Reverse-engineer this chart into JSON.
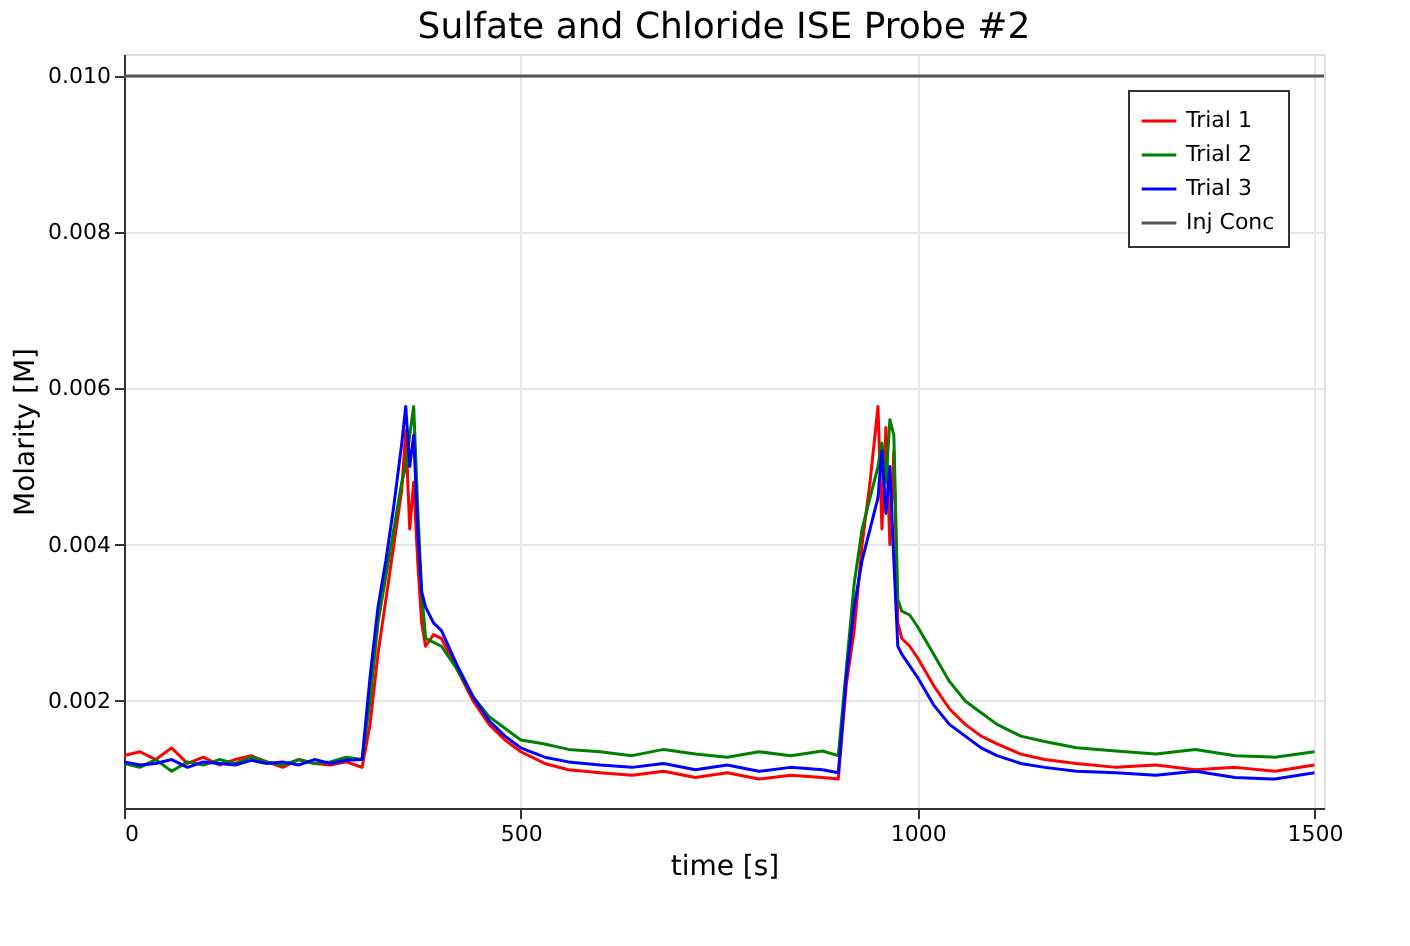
{
  "chart_data": {
    "type": "line",
    "title": "Sulfate and Chloride ISE Probe #2",
    "xlabel": "time [s]",
    "ylabel": "Molarity [M]",
    "x": [
      0,
      20,
      40,
      60,
      80,
      100,
      120,
      140,
      160,
      180,
      200,
      220,
      240,
      260,
      280,
      300,
      310,
      320,
      330,
      340,
      350,
      355,
      360,
      365,
      370,
      375,
      380,
      390,
      400,
      420,
      440,
      460,
      480,
      500,
      530,
      560,
      600,
      640,
      680,
      720,
      760,
      800,
      840,
      880,
      900,
      910,
      920,
      930,
      940,
      950,
      955,
      960,
      965,
      970,
      975,
      980,
      990,
      1000,
      1020,
      1040,
      1060,
      1080,
      1100,
      1130,
      1160,
      1200,
      1250,
      1300,
      1350,
      1400,
      1450,
      1500
    ],
    "series": [
      {
        "name": "Trial 1",
        "color": "#ff0000",
        "values": [
          0.0013,
          0.00135,
          0.00125,
          0.0014,
          0.0012,
          0.00128,
          0.00118,
          0.00125,
          0.0013,
          0.00122,
          0.00115,
          0.00125,
          0.0012,
          0.00118,
          0.00122,
          0.00115,
          0.0017,
          0.0026,
          0.0033,
          0.004,
          0.0047,
          0.00546,
          0.0042,
          0.0048,
          0.0038,
          0.003,
          0.0027,
          0.00285,
          0.0028,
          0.0024,
          0.002,
          0.0017,
          0.0015,
          0.00135,
          0.0012,
          0.00112,
          0.00108,
          0.00105,
          0.0011,
          0.00102,
          0.00108,
          0.001,
          0.00105,
          0.00102,
          0.001,
          0.0022,
          0.0029,
          0.004,
          0.0048,
          0.00577,
          0.0042,
          0.0055,
          0.004,
          0.0052,
          0.003,
          0.0028,
          0.0027,
          0.00255,
          0.0022,
          0.0019,
          0.0017,
          0.00155,
          0.00145,
          0.00132,
          0.00125,
          0.0012,
          0.00115,
          0.00118,
          0.00112,
          0.00115,
          0.0011,
          0.00118
        ]
      },
      {
        "name": "Trial 2",
        "color": "#008000",
        "values": [
          0.0012,
          0.00115,
          0.00125,
          0.0011,
          0.00122,
          0.00118,
          0.00125,
          0.0012,
          0.00128,
          0.00122,
          0.00118,
          0.00125,
          0.0012,
          0.00122,
          0.00128,
          0.00125,
          0.002,
          0.003,
          0.0036,
          0.0042,
          0.0048,
          0.005,
          0.0054,
          0.00577,
          0.0045,
          0.0034,
          0.0028,
          0.00275,
          0.0027,
          0.0024,
          0.00205,
          0.0018,
          0.00165,
          0.0015,
          0.00145,
          0.00138,
          0.00135,
          0.0013,
          0.00138,
          0.00132,
          0.00128,
          0.00135,
          0.0013,
          0.00136,
          0.0013,
          0.0024,
          0.0035,
          0.0042,
          0.0046,
          0.005,
          0.0053,
          0.0048,
          0.0056,
          0.0054,
          0.0033,
          0.00315,
          0.0031,
          0.00295,
          0.0026,
          0.00225,
          0.002,
          0.00185,
          0.0017,
          0.00155,
          0.00148,
          0.0014,
          0.00136,
          0.00132,
          0.00138,
          0.0013,
          0.00128,
          0.00135
        ]
      },
      {
        "name": "Trial 3",
        "color": "#0000ff",
        "values": [
          0.00122,
          0.00118,
          0.0012,
          0.00125,
          0.00115,
          0.00122,
          0.0012,
          0.00118,
          0.00124,
          0.0012,
          0.00122,
          0.00118,
          0.00125,
          0.0012,
          0.00124,
          0.00125,
          0.0023,
          0.0032,
          0.0038,
          0.0045,
          0.0053,
          0.00577,
          0.005,
          0.0054,
          0.0042,
          0.0034,
          0.0032,
          0.003,
          0.0029,
          0.00245,
          0.00205,
          0.00175,
          0.00155,
          0.0014,
          0.00128,
          0.00122,
          0.00118,
          0.00115,
          0.0012,
          0.00112,
          0.00118,
          0.0011,
          0.00115,
          0.00112,
          0.00108,
          0.0023,
          0.0032,
          0.0038,
          0.0042,
          0.0046,
          0.0052,
          0.0044,
          0.005,
          0.0038,
          0.0027,
          0.0026,
          0.00245,
          0.0023,
          0.00195,
          0.0017,
          0.00155,
          0.0014,
          0.0013,
          0.0012,
          0.00115,
          0.0011,
          0.00108,
          0.00105,
          0.0011,
          0.00102,
          0.001,
          0.00108
        ]
      },
      {
        "name": "Inj Conc",
        "color": "#555555",
        "x": [
          0,
          1512
        ],
        "values": [
          0.01,
          0.01
        ]
      }
    ],
    "xlim": [
      0,
      1512
    ],
    "xticks": [
      0,
      500,
      1000,
      1500
    ],
    "ylim": [
      0.00063,
      0.01028
    ],
    "yticks": [
      {
        "value": 0.002,
        "label": "0.002"
      },
      {
        "value": 0.004,
        "label": "0.004"
      },
      {
        "value": 0.006,
        "label": "0.006"
      },
      {
        "value": 0.008,
        "label": "0.008"
      },
      {
        "value": 0.01,
        "label": "0.010"
      }
    ],
    "grid": true,
    "legend": "top right",
    "marker": "none",
    "line_style": "solid"
  }
}
